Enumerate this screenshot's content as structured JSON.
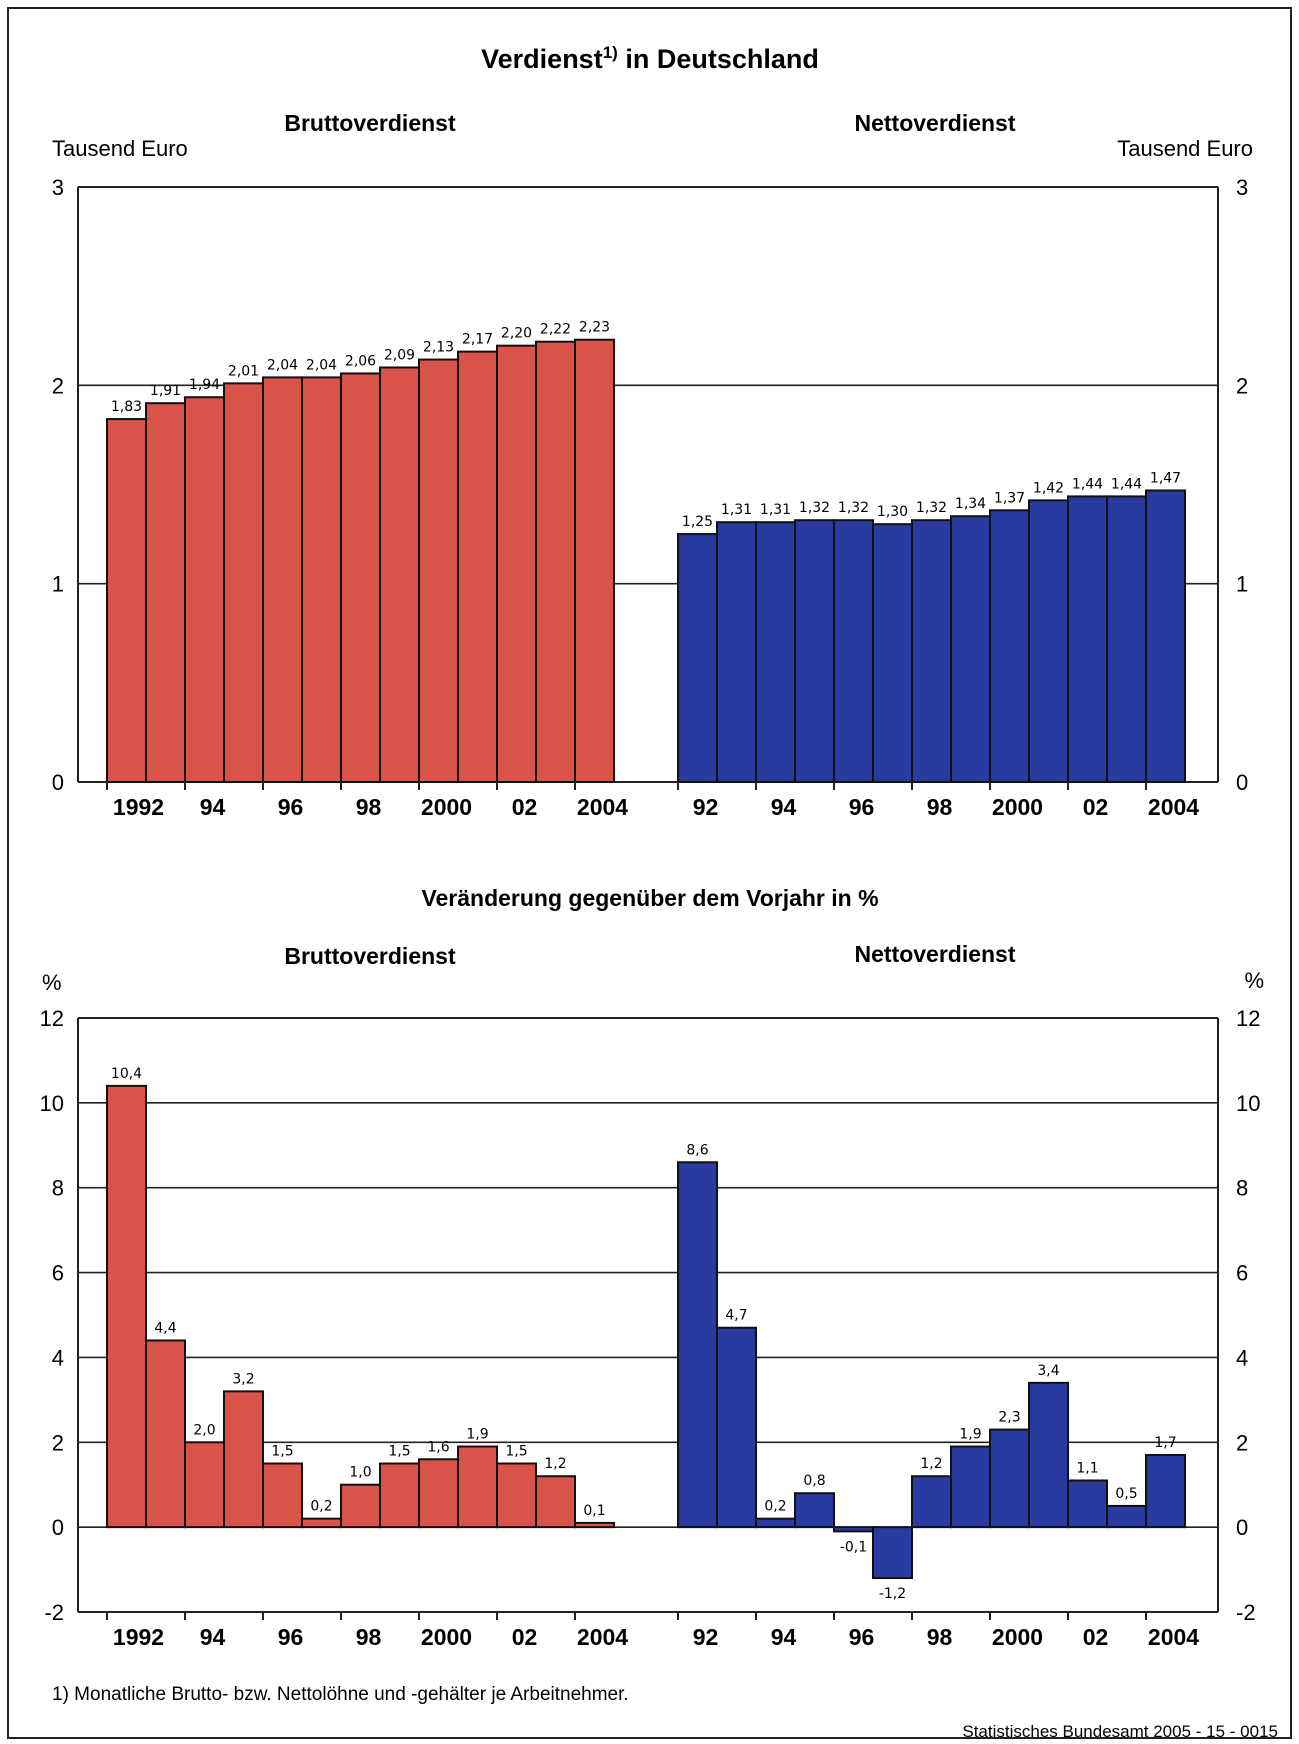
{
  "page": {
    "title": "Verdienst",
    "title_sup": "1)",
    "title_rest": " in Deutschland",
    "footnote": "1) Monatliche Brutto- bzw. Nettolöhne und -gehälter je Arbeitnehmer.",
    "source": "Statistisches Bundesamt 2005 - 15 - 0015"
  },
  "chart_data": [
    {
      "type": "bar",
      "id": "levels",
      "left_title": "Bruttoverdienst",
      "right_title": "Nettoverdienst",
      "unit_left": "Tausend Euro",
      "unit_right": "Tausend Euro",
      "ylim": [
        0,
        3
      ],
      "yticks": [
        0,
        1,
        2,
        3
      ],
      "ytick_labels": [
        "0",
        "1",
        "2",
        "3"
      ],
      "grid": true,
      "categories": [
        "1992",
        "1993",
        "1994",
        "1995",
        "1996",
        "1997",
        "1998",
        "1999",
        "2000",
        "2001",
        "2002",
        "2003",
        "2004"
      ],
      "series": [
        {
          "name": "Bruttoverdienst",
          "color": "#d9534a",
          "values": [
            1.83,
            1.91,
            1.94,
            2.01,
            2.04,
            2.04,
            2.06,
            2.09,
            2.13,
            2.17,
            2.2,
            2.22,
            2.23
          ],
          "labels": [
            "1,83",
            "1,91",
            "1,94",
            "2,01",
            "2,04",
            "2,04",
            "2,06",
            "2,09",
            "2,13",
            "2,17",
            "2,20",
            "2,22",
            "2,23"
          ],
          "xtick_labels": [
            "1992",
            "94",
            "96",
            "98",
            "2000",
            "02",
            "2004"
          ]
        },
        {
          "name": "Nettoverdienst",
          "color": "#2a3ba0",
          "values": [
            1.25,
            1.31,
            1.31,
            1.32,
            1.32,
            1.3,
            1.32,
            1.34,
            1.37,
            1.42,
            1.44,
            1.44,
            1.47
          ],
          "labels": [
            "1,25",
            "1,31",
            "1,31",
            "1,32",
            "1,32",
            "1,30",
            "1,32",
            "1,34",
            "1,37",
            "1,42",
            "1,44",
            "1,44",
            "1,47"
          ],
          "xtick_labels": [
            "92",
            "94",
            "96",
            "98",
            "2000",
            "02",
            "2004"
          ]
        }
      ]
    },
    {
      "type": "bar",
      "id": "changes",
      "heading": "Veränderung gegenüber dem Vorjahr in %",
      "left_title": "Bruttoverdienst",
      "right_title": "Nettoverdienst",
      "unit_left": "%",
      "unit_right": "%",
      "ylim": [
        -2,
        12
      ],
      "yticks": [
        -2,
        0,
        2,
        4,
        6,
        8,
        10,
        12
      ],
      "ytick_labels": [
        "-2",
        "0",
        "2",
        "4",
        "6",
        "8",
        "10",
        "12"
      ],
      "grid": true,
      "categories": [
        "1992",
        "1993",
        "1994",
        "1995",
        "1996",
        "1997",
        "1998",
        "1999",
        "2000",
        "2001",
        "2002",
        "2003",
        "2004"
      ],
      "series": [
        {
          "name": "Bruttoverdienst",
          "color": "#d9534a",
          "values": [
            10.4,
            4.4,
            2.0,
            3.2,
            1.5,
            0.2,
            1.0,
            1.5,
            1.6,
            1.9,
            1.5,
            1.2,
            0.1
          ],
          "labels": [
            "10,4",
            "4,4",
            "2,0",
            "3,2",
            "1,5",
            "0,2",
            "1,0",
            "1,5",
            "1,6",
            "1,9",
            "1,5",
            "1,2",
            "0,1"
          ],
          "xtick_labels": [
            "1992",
            "94",
            "96",
            "98",
            "2000",
            "02",
            "2004"
          ]
        },
        {
          "name": "Nettoverdienst",
          "color": "#2a3ba0",
          "values": [
            8.6,
            4.7,
            0.2,
            0.8,
            -0.1,
            -1.2,
            1.2,
            1.9,
            2.3,
            3.4,
            1.1,
            0.5,
            1.7
          ],
          "labels": [
            "8,6",
            "4,7",
            "0,2",
            "0,8",
            "-0,1",
            "-1,2",
            "1,2",
            "1,9",
            "2,3",
            "3,4",
            "1,1",
            "0,5",
            "1,7"
          ],
          "xtick_labels": [
            "92",
            "94",
            "96",
            "98",
            "2000",
            "02",
            "2004"
          ]
        }
      ]
    }
  ]
}
